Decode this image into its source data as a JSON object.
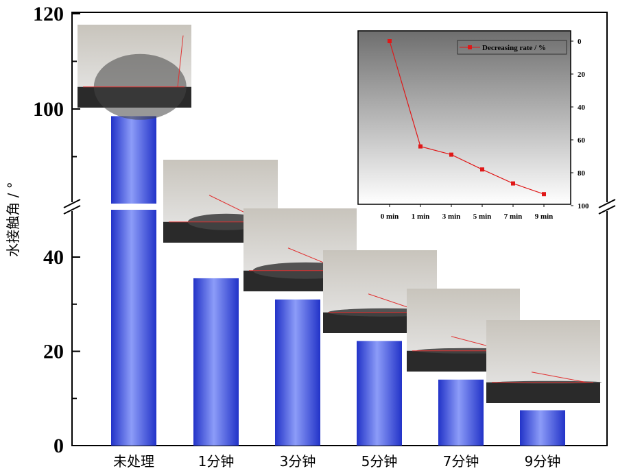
{
  "chart_data": [
    {
      "type": "bar",
      "ylabel": "水接触角 / °",
      "categories": [
        "未处理",
        "1分钟",
        "3分钟",
        "5分钟",
        "7分钟",
        "9分钟"
      ],
      "values": [
        98.5,
        35.5,
        31.0,
        22.2,
        14.0,
        7.5
      ],
      "axis_break": {
        "lower_range": [
          0,
          51
        ],
        "upper_range": [
          80,
          120
        ]
      },
      "yticks_lower": [
        "0",
        "20",
        "40"
      ],
      "yticks_upper": [
        "100",
        "120"
      ],
      "bar_color": "#3a4ed8",
      "grid": false,
      "annotations": "contact-angle droplet photos above each bar"
    },
    {
      "type": "line",
      "categories": [
        "0 min",
        "1 min",
        "3 min",
        "5 min",
        "7 min",
        "9 min"
      ],
      "series": [
        {
          "name": "Decreasing rate / %",
          "values": [
            0,
            64,
            69,
            78,
            86.5,
            93
          ],
          "color": "#e01818"
        }
      ],
      "ylim": [
        0,
        100
      ],
      "y_inverted": true,
      "y_axis_side": "right",
      "yticks": [
        "0",
        "20",
        "40",
        "60",
        "80",
        "100"
      ],
      "legend": "top-right"
    }
  ]
}
